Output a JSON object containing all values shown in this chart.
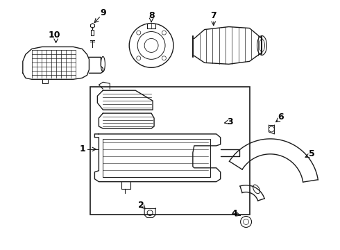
{
  "background_color": "#ffffff",
  "line_color": "#1a1a1a",
  "label_color": "#000000",
  "fig_width": 4.9,
  "fig_height": 3.6,
  "dpi": 100,
  "lw": 1.0
}
